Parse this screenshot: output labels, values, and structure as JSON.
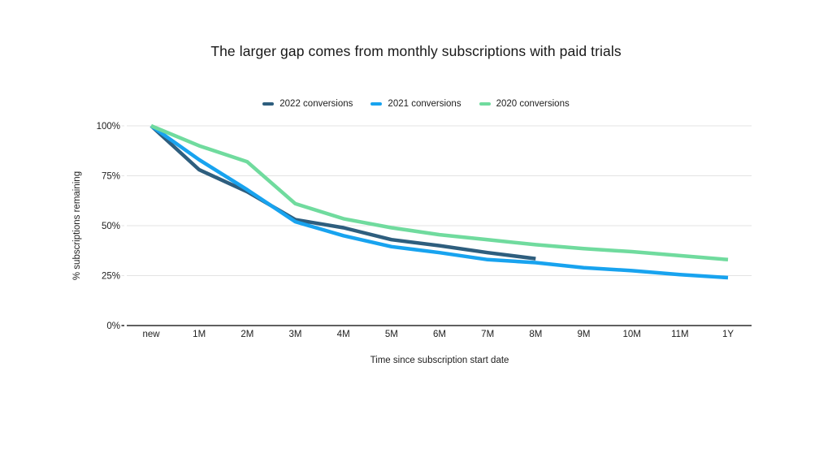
{
  "chart": {
    "title": "The larger gap comes from monthly subscriptions with paid trials"
  },
  "colors": {
    "grid": "#e3e3e3",
    "axis": "#4a4a4a",
    "tick_text": "#212121",
    "background": "#ffffff"
  },
  "chart_data": {
    "type": "line",
    "title": "The larger gap comes from monthly subscriptions with paid trials",
    "xlabel": "Time since subscription start date",
    "ylabel": "% subscriptions remaining",
    "legend_position": "top",
    "grid": true,
    "ylim": [
      0,
      100
    ],
    "categories": [
      "new",
      "1M",
      "2M",
      "3M",
      "4M",
      "5M",
      "6M",
      "7M",
      "8M",
      "9M",
      "10M",
      "11M",
      "1Y"
    ],
    "y_ticks": [
      {
        "value": 0,
        "label": "0%"
      },
      {
        "value": 25,
        "label": "25%"
      },
      {
        "value": 50,
        "label": "50%"
      },
      {
        "value": 75,
        "label": "75%"
      },
      {
        "value": 100,
        "label": "100%"
      }
    ],
    "series": [
      {
        "name": "2022 conversions",
        "color": "#2e5e7e",
        "values": [
          100,
          78,
          67,
          53,
          49,
          43,
          40,
          36.5,
          33.5,
          null,
          null,
          null,
          null
        ]
      },
      {
        "name": "2021 conversions",
        "color": "#18a3ef",
        "values": [
          100,
          83,
          68,
          52,
          45,
          39.5,
          36.5,
          33,
          31.5,
          29,
          27.5,
          25.5,
          24
        ]
      },
      {
        "name": "2020 conversions",
        "color": "#70db9e",
        "values": [
          100,
          90,
          82,
          61,
          53.5,
          49,
          45.5,
          43,
          40.5,
          38.5,
          37,
          35,
          33
        ]
      }
    ]
  }
}
